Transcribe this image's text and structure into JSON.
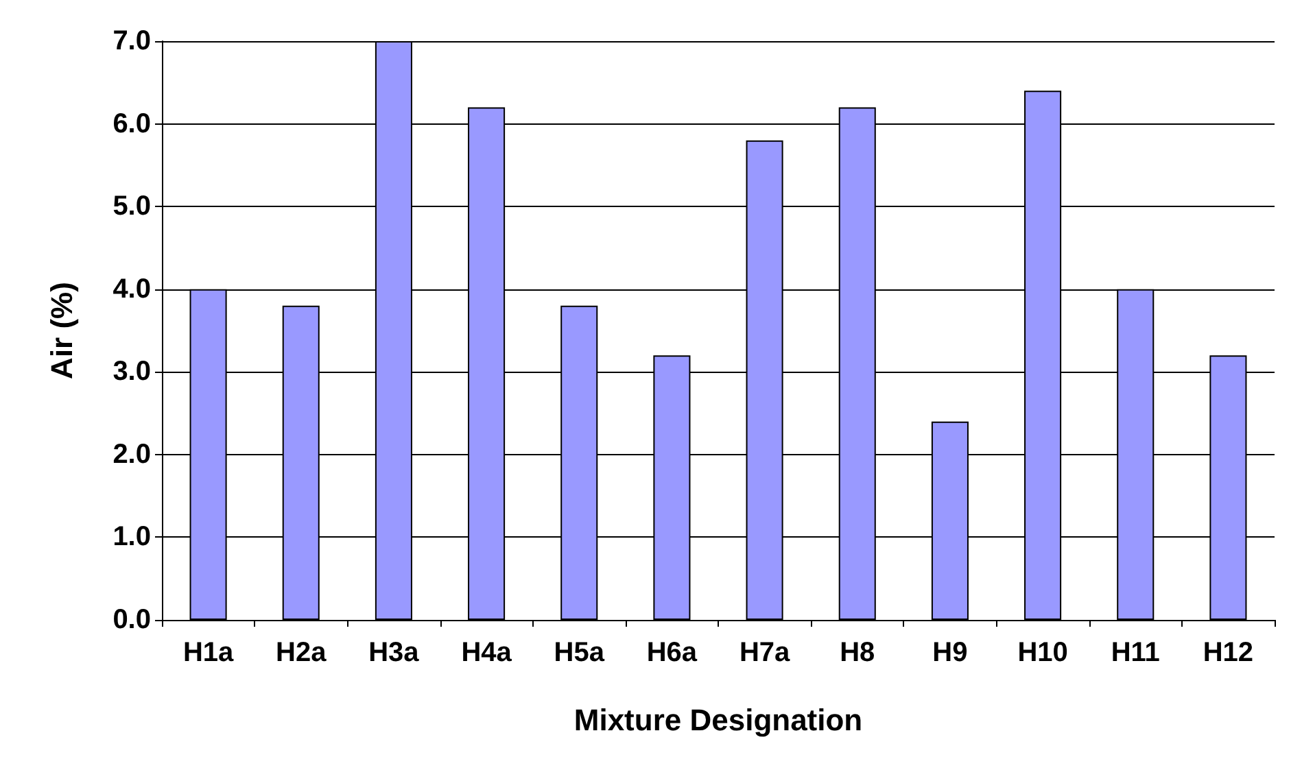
{
  "chart_data": {
    "type": "bar",
    "xlabel": "Mixture Designation",
    "ylabel": "Air (%)",
    "categories": [
      "H1a",
      "H2a",
      "H3a",
      "H4a",
      "H5a",
      "H6a",
      "H7a",
      "H8",
      "H9",
      "H10",
      "H11",
      "H12"
    ],
    "values": [
      4.0,
      3.8,
      7.0,
      6.2,
      3.8,
      3.2,
      5.8,
      6.2,
      2.4,
      6.4,
      4.0,
      3.2
    ],
    "color": "#9999ff",
    "ylim": [
      0,
      7
    ],
    "yticks": [
      {
        "value": 0,
        "label": "0.0"
      },
      {
        "value": 1,
        "label": "1.0"
      },
      {
        "value": 2,
        "label": "2.0"
      },
      {
        "value": 3,
        "label": "3.0"
      },
      {
        "value": 4,
        "label": "4.0"
      },
      {
        "value": 5,
        "label": "5.0"
      },
      {
        "value": 6,
        "label": "6.0"
      },
      {
        "value": 7,
        "label": "7.0"
      }
    ],
    "grid": "y"
  }
}
